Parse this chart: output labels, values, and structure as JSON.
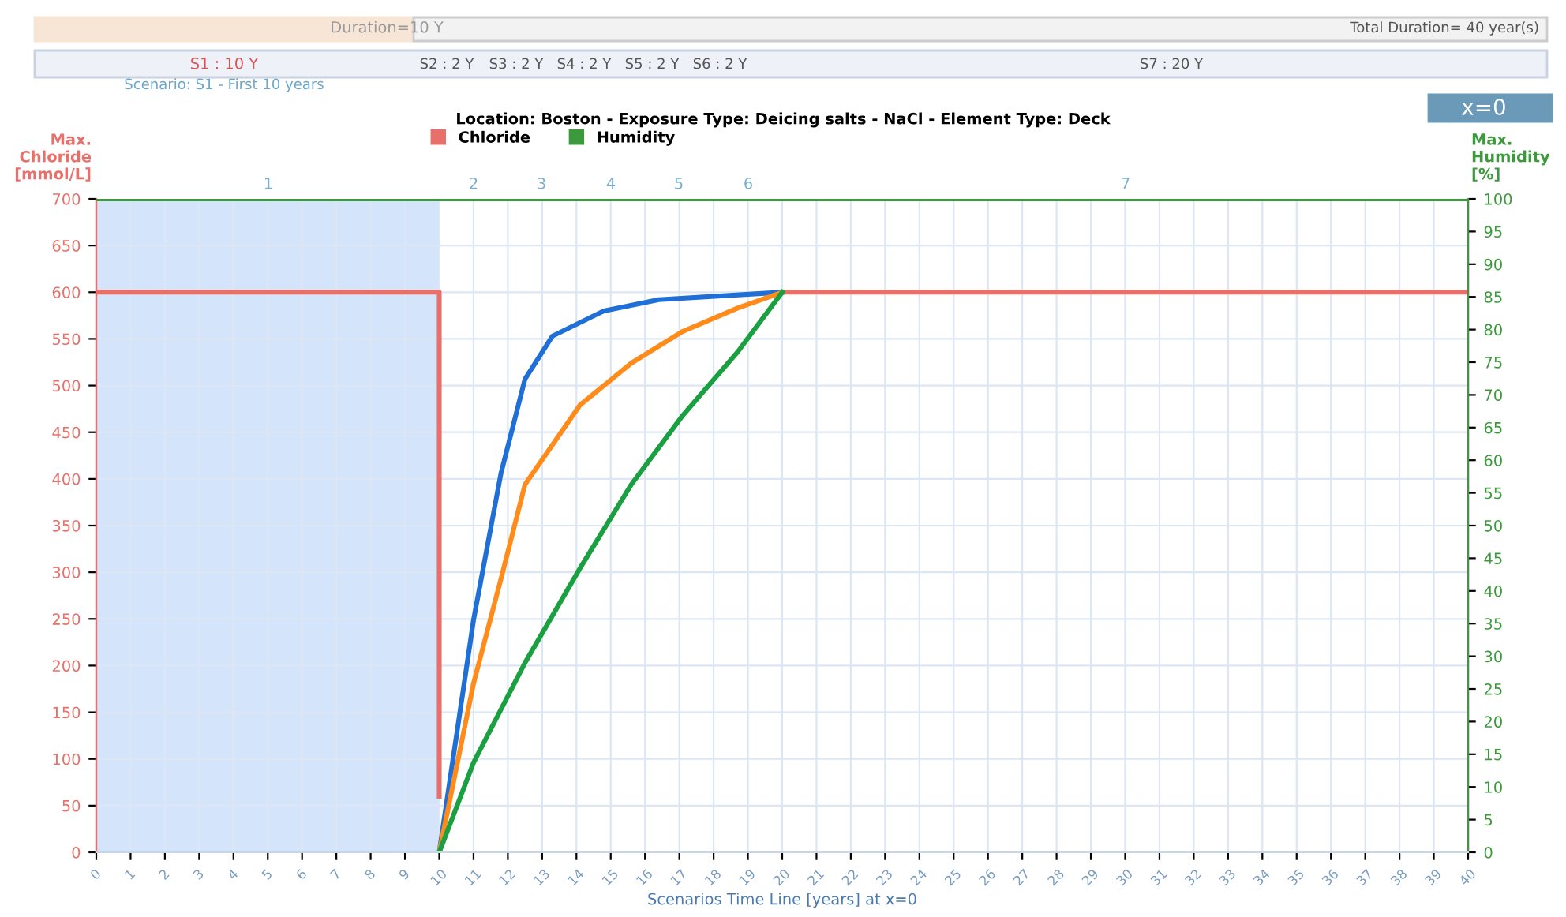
{
  "chart_data": {
    "type": "line",
    "title": "Location: Boston - Exposure Type: Deicing salts - NaCl - Element Type: Deck",
    "xlabel": "Scenarios Time Line [years] at x=0",
    "ylabel": "Max. Chloride [mmol/L]",
    "y2label": "Max. Humidity [%]",
    "annotations": [
      "Duration=10 Y",
      "Total Duration= 40 year(s)",
      "S1 : 10 Y",
      "S2 : 2 Y",
      "S3 : 2 Y",
      "S4 : 2 Y",
      "S5 : 2 Y",
      "S6 : 2 Y",
      "S7 : 20 Y",
      "Scenario: S1 - First 10 years",
      "x=0",
      "1",
      "2",
      "3",
      "4",
      "5",
      "6",
      "7"
    ],
    "series": [
      {
        "name": "Chloride",
        "color": "#e8706a",
        "x": [
          0,
          10,
          10,
          15,
          20,
          40
        ],
        "values": [
          600,
          600,
          60,
          null,
          600,
          600
        ]
      },
      {
        "name": "Humidity",
        "color": "#3c9a3c",
        "axis": "y2",
        "x": [
          0,
          40
        ],
        "values": [
          100,
          100
        ]
      },
      {
        "color": "#1f6fd6",
        "x": [
          10,
          11,
          11.8,
          12.5,
          13.3,
          14.8,
          16.4,
          20
        ],
        "values": [
          0,
          249,
          406,
          507,
          553,
          580,
          592,
          600
        ]
      },
      {
        "color": "#ff8c1a",
        "x": [
          10,
          11,
          11.8,
          12.5,
          14.1,
          15.6,
          17.1,
          18.7,
          20
        ],
        "values": [
          0,
          181,
          293,
          394,
          479,
          524,
          558,
          583,
          600
        ]
      },
      {
        "color": "#1aa040",
        "x": [
          10,
          11,
          12.5,
          14.1,
          15.6,
          17.1,
          18.7,
          20
        ],
        "values": [
          0,
          96,
          203,
          304,
          394,
          468,
          536,
          600
        ]
      }
    ],
    "bands": [
      {
        "axis": "x",
        "from": 0,
        "to": 10,
        "color": "#c9defa"
      }
    ],
    "xlim": [
      0,
      40
    ],
    "xticks": [
      0,
      1,
      2,
      3,
      4,
      5,
      6,
      7,
      8,
      9,
      10,
      11,
      12,
      13,
      14,
      15,
      16,
      17,
      18,
      19,
      20,
      21,
      22,
      23,
      24,
      25,
      26,
      27,
      28,
      29,
      30,
      31,
      32,
      33,
      34,
      35,
      36,
      37,
      38,
      39,
      40
    ],
    "ylim": [
      0,
      700
    ],
    "yticks": [
      0,
      50,
      100,
      150,
      200,
      250,
      300,
      350,
      400,
      450,
      500,
      550,
      600,
      650,
      700
    ],
    "y2lim": [
      0,
      100
    ],
    "y2ticks": [
      0,
      5,
      10,
      15,
      20,
      25,
      30,
      35,
      40,
      45,
      50,
      55,
      60,
      65,
      70,
      75,
      80,
      85,
      90,
      95,
      100
    ],
    "grid": true,
    "legend": "top",
    "marker": "none",
    "line_style": "solid"
  }
}
